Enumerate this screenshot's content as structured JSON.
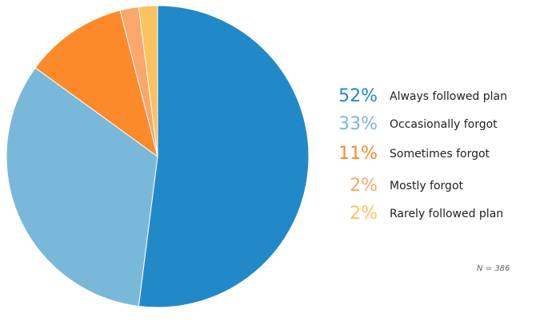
{
  "chart_data": {
    "type": "pie",
    "slices": [
      {
        "label": "Always followed plan",
        "value": 52,
        "pct_label": "52%",
        "color": "#2289c9"
      },
      {
        "label": "Occasionally forgot",
        "value": 33,
        "pct_label": "33%",
        "color": "#7ab8da"
      },
      {
        "label": "Sometimes forgot",
        "value": 11,
        "pct_label": "11%",
        "color": "#fd8a2a"
      },
      {
        "label": "Mostly forgot",
        "value": 2,
        "pct_label": "2%",
        "color": "#fba66a"
      },
      {
        "label": "Rarely followed plan",
        "value": 2,
        "pct_label": "2%",
        "color": "#fdc160"
      }
    ],
    "start_angle_deg": 0,
    "direction": "clockwise",
    "legend_position": "right",
    "note": "N = 386"
  }
}
